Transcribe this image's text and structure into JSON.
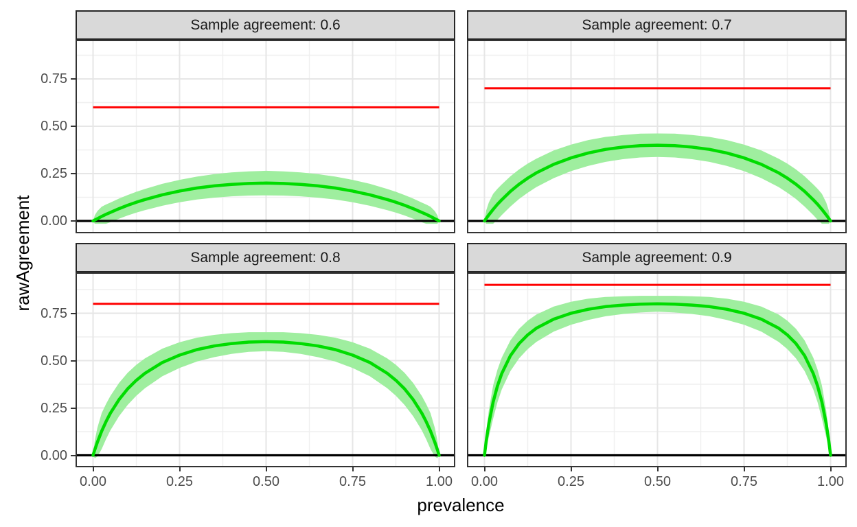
{
  "chart_data": {
    "type": "line",
    "title": "",
    "xlabel": "prevalence",
    "ylabel": "rawAgreement",
    "legend": "none",
    "grid": true,
    "x_range": [
      -0.05,
      1.05
    ],
    "y_range": [
      -0.065,
      0.9565
    ],
    "x_ticks": [
      "0.00",
      "0.25",
      "0.50",
      "0.75",
      "1.00"
    ],
    "x_tick_values": [
      0,
      0.25,
      0.5,
      0.75,
      1
    ],
    "y_ticks": [
      "0.00",
      "0.25",
      "0.50",
      "0.75"
    ],
    "y_tick_values": [
      0,
      0.25,
      0.5,
      0.75
    ],
    "x_minor_gridlines": [
      0.125,
      0.375,
      0.625,
      0.875
    ],
    "y_minor_gridlines": [
      0.125,
      0.375,
      0.625,
      0.875
    ],
    "zero_line_y": 0,
    "style": {
      "background": "#FFFFFF",
      "strip_fill": "#D9D9D9",
      "strip_border": "#262626",
      "strip_text": "#1A1A1A",
      "panel_border": "#333333",
      "grid_major": "#E6E6E6",
      "grid_minor": "#EFEFEF",
      "axis_text": "#4D4D4D",
      "tick_mark": "#333333",
      "reference_line": "#FF0000",
      "curve_line": "#00DC00",
      "ribbon_fill": "#9FEE9F",
      "zero_line": "#000000"
    },
    "facets": [
      {
        "label": "Sample agreement: 0.6",
        "sample_agreement": 0.6,
        "reference_line_y": 0.6,
        "curve": {
          "symmetric_about_x": 0.5,
          "p_left_half": [
            0,
            0.005,
            0.0125,
            0.025,
            0.0375,
            0.05,
            0.075,
            0.1,
            0.125,
            0.15,
            0.2,
            0.25,
            0.3,
            0.35,
            0.4,
            0.45,
            0.5
          ],
          "line": [
            0,
            0.005,
            0.012,
            0.024,
            0.035,
            0.045,
            0.065,
            0.083,
            0.099,
            0.113,
            0.138,
            0.158,
            0.174,
            0.185,
            0.193,
            0.198,
            0.2
          ],
          "upper": [
            0,
            0.03,
            0.052,
            0.075,
            0.087,
            0.097,
            0.118,
            0.137,
            0.154,
            0.169,
            0.196,
            0.217,
            0.234,
            0.247,
            0.256,
            0.262,
            0.265
          ],
          "lower": [
            0,
            -0.015,
            -0.015,
            -0.015,
            -0.015,
            -0.007,
            0.012,
            0.029,
            0.044,
            0.057,
            0.08,
            0.099,
            0.113,
            0.123,
            0.13,
            0.134,
            0.135
          ]
        }
      },
      {
        "label": "Sample agreement: 0.7",
        "sample_agreement": 0.7,
        "reference_line_y": 0.7,
        "curve": {
          "symmetric_about_x": 0.5,
          "p_left_half": [
            0,
            0.005,
            0.0125,
            0.025,
            0.0375,
            0.05,
            0.075,
            0.1,
            0.125,
            0.15,
            0.2,
            0.25,
            0.3,
            0.35,
            0.4,
            0.45,
            0.5
          ],
          "line": [
            0,
            0.013,
            0.032,
            0.061,
            0.088,
            0.112,
            0.156,
            0.194,
            0.226,
            0.254,
            0.299,
            0.333,
            0.359,
            0.378,
            0.39,
            0.398,
            0.4
          ],
          "upper": [
            0,
            0.055,
            0.097,
            0.143,
            0.17,
            0.193,
            0.236,
            0.272,
            0.303,
            0.329,
            0.372,
            0.403,
            0.427,
            0.444,
            0.454,
            0.461,
            0.462
          ],
          "lower": [
            0,
            -0.015,
            -0.015,
            -0.015,
            0.006,
            0.031,
            0.076,
            0.116,
            0.149,
            0.179,
            0.226,
            0.263,
            0.291,
            0.312,
            0.326,
            0.335,
            0.338
          ]
        }
      },
      {
        "label": "Sample agreement: 0.8",
        "sample_agreement": 0.8,
        "reference_line_y": 0.8,
        "curve": {
          "symmetric_about_x": 0.5,
          "p_left_half": [
            0,
            0.005,
            0.0125,
            0.025,
            0.0375,
            0.05,
            0.075,
            0.1,
            0.125,
            0.15,
            0.2,
            0.25,
            0.3,
            0.35,
            0.4,
            0.45,
            0.5
          ],
          "line": [
            0,
            0.029,
            0.069,
            0.128,
            0.178,
            0.222,
            0.294,
            0.351,
            0.396,
            0.433,
            0.49,
            0.529,
            0.558,
            0.577,
            0.59,
            0.598,
            0.6
          ],
          "upper": [
            0,
            0.078,
            0.145,
            0.223,
            0.271,
            0.313,
            0.382,
            0.436,
            0.478,
            0.512,
            0.563,
            0.597,
            0.621,
            0.636,
            0.645,
            0.65,
            0.65
          ],
          "lower": [
            0,
            -0.015,
            -0.007,
            0.033,
            0.085,
            0.131,
            0.206,
            0.266,
            0.314,
            0.354,
            0.417,
            0.461,
            0.495,
            0.518,
            0.535,
            0.546,
            0.55
          ]
        }
      },
      {
        "label": "Sample agreement: 0.9",
        "sample_agreement": 0.9,
        "reference_line_y": 0.9,
        "curve": {
          "symmetric_about_x": 0.5,
          "p_left_half": [
            0,
            0.005,
            0.0125,
            0.025,
            0.0375,
            0.05,
            0.075,
            0.1,
            0.125,
            0.15,
            0.2,
            0.25,
            0.3,
            0.35,
            0.4,
            0.45,
            0.5
          ],
          "line": [
            0,
            0.074,
            0.166,
            0.281,
            0.366,
            0.432,
            0.526,
            0.59,
            0.636,
            0.671,
            0.719,
            0.75,
            0.771,
            0.785,
            0.793,
            0.798,
            0.8
          ],
          "upper": [
            0,
            0.119,
            0.236,
            0.369,
            0.452,
            0.516,
            0.607,
            0.668,
            0.711,
            0.743,
            0.785,
            0.811,
            0.827,
            0.836,
            0.84,
            0.842,
            0.842
          ],
          "lower": [
            0,
            0.029,
            0.096,
            0.193,
            0.28,
            0.348,
            0.445,
            0.512,
            0.561,
            0.599,
            0.653,
            0.689,
            0.715,
            0.734,
            0.746,
            0.754,
            0.758
          ]
        }
      }
    ]
  }
}
